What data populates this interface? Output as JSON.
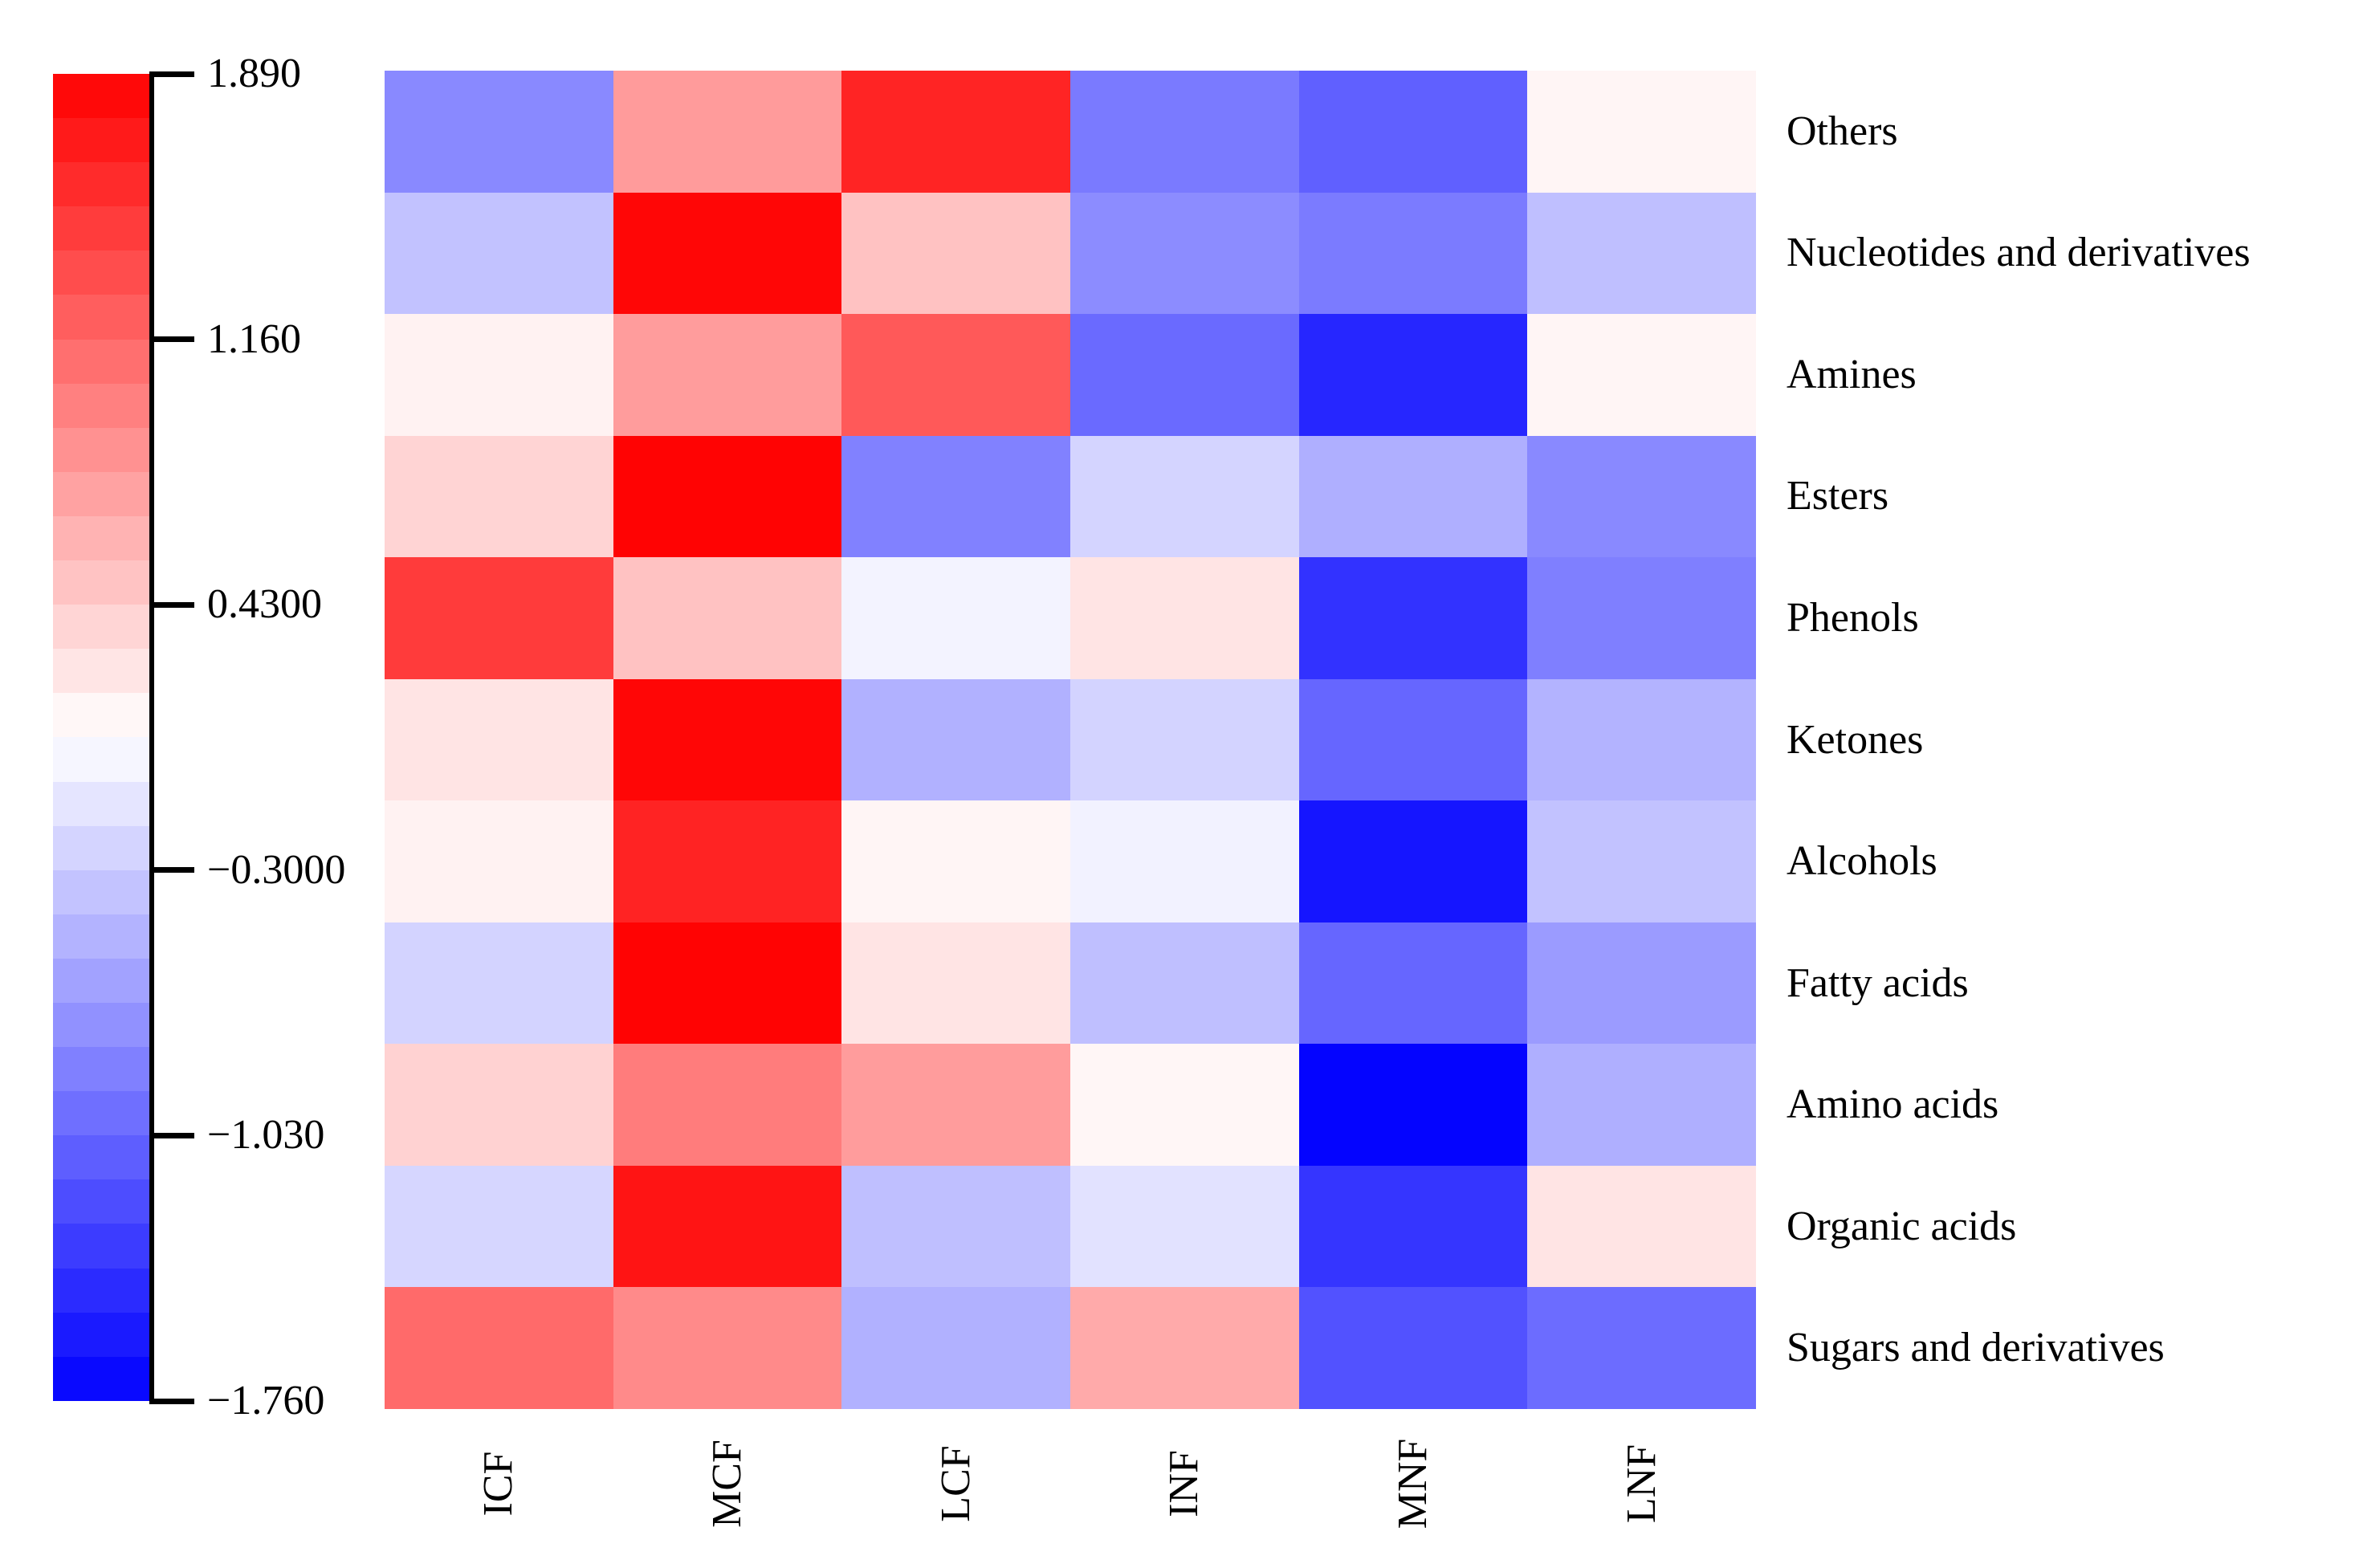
{
  "figure": {
    "background": "#ffffff",
    "text_color": "#000000"
  },
  "chart_data": {
    "type": "heatmap",
    "title": "",
    "columns": [
      "ICF",
      "MCF",
      "LCF",
      "INF",
      "MNF",
      "LNF"
    ],
    "rows": [
      "Others",
      "Nucleotides and derivatives",
      "Amines",
      "Esters",
      "Phenols",
      "Ketones",
      "Alcohols",
      "Fatty acids",
      "Amino acids",
      "Organic acids",
      "Sugars and derivatives"
    ],
    "values": [
      [
        -0.78,
        0.78,
        1.63,
        -0.89,
        -1.07,
        0.14
      ],
      [
        -0.37,
        1.85,
        0.5,
        -0.76,
        -0.88,
        -0.39
      ],
      [
        0.16,
        0.77,
        1.25,
        -1.0,
        -1.49,
        0.14
      ],
      [
        0.37,
        1.87,
        -0.84,
        -0.24,
        -0.51,
        -0.78
      ],
      [
        1.47,
        0.5,
        -0.02,
        0.26,
        -1.4,
        -0.85
      ],
      [
        0.26,
        1.85,
        -0.49,
        -0.25,
        -1.03,
        -0.48
      ],
      [
        0.16,
        1.64,
        0.14,
        -0.03,
        -1.61,
        -0.37
      ],
      [
        -0.25,
        1.87,
        0.26,
        -0.39,
        -1.03,
        -0.65
      ],
      [
        0.39,
        1.0,
        0.77,
        0.13,
        -1.73,
        -0.51
      ],
      [
        -0.23,
        1.75,
        -0.39,
        -0.14,
        -1.38,
        0.26
      ],
      [
        1.13,
        0.9,
        -0.49,
        0.67,
        -1.17,
        -0.99
      ]
    ],
    "vmin": -1.76,
    "vmax": 1.89,
    "colormap": "blue-white-red",
    "colormap_colors": [
      "#0000ff",
      "#ffffff",
      "#ff0000"
    ],
    "grid": false,
    "colorbar": {
      "position": "left",
      "steps": 30,
      "ticks": [
        "1.890",
        "1.160",
        "0.4300",
        "−0.3000",
        "−1.030",
        "−1.760"
      ],
      "tick_values": [
        1.89,
        1.16,
        0.43,
        -0.3,
        -1.03,
        -1.76
      ]
    }
  }
}
